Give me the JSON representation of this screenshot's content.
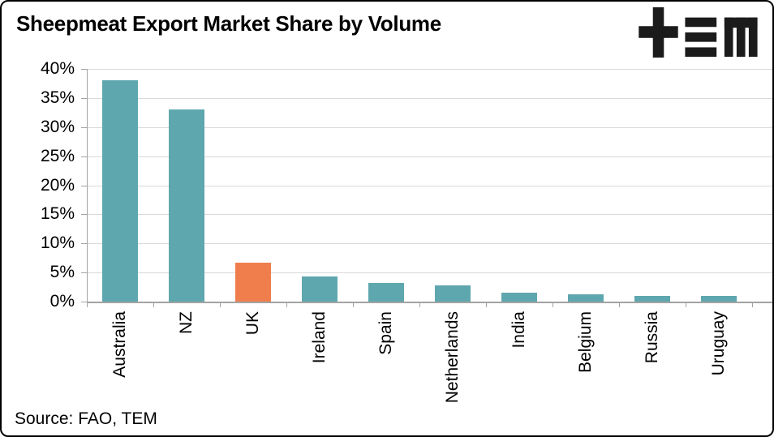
{
  "header": {
    "title": "Sheepmeat Export Market Share by Volume",
    "logo": "TEM"
  },
  "source": "Source: FAO, TEM",
  "colors": {
    "bar": "#5fa7ae",
    "bar_highlight": "#f07e4d",
    "gridline": "#d9d9d9",
    "axis": "#a3a3a3",
    "text": "#000000",
    "logo": "#1b1b1b",
    "frame_border": "#000000"
  },
  "chart_data": {
    "type": "bar",
    "title": "Sheepmeat Export Market Share by Volume",
    "categories": [
      "Australia",
      "NZ",
      "UK",
      "Ireland",
      "Spain",
      "Netherlands",
      "India",
      "Belgium",
      "Russia",
      "Uruguay"
    ],
    "values": [
      38,
      33,
      6.7,
      4.3,
      3.2,
      2.8,
      1.5,
      1.2,
      1.0,
      1.0
    ],
    "highlight_index": 2,
    "highlight_category": "UK",
    "unit": "percent",
    "ylim": [
      0,
      40
    ],
    "ytick_step": 5,
    "ytick_labels": [
      "0%",
      "5%",
      "10%",
      "15%",
      "20%",
      "25%",
      "30%",
      "35%",
      "40%"
    ],
    "grid": true,
    "legend": null,
    "xlabel": "",
    "ylabel": "",
    "source": "Source: FAO, TEM"
  }
}
